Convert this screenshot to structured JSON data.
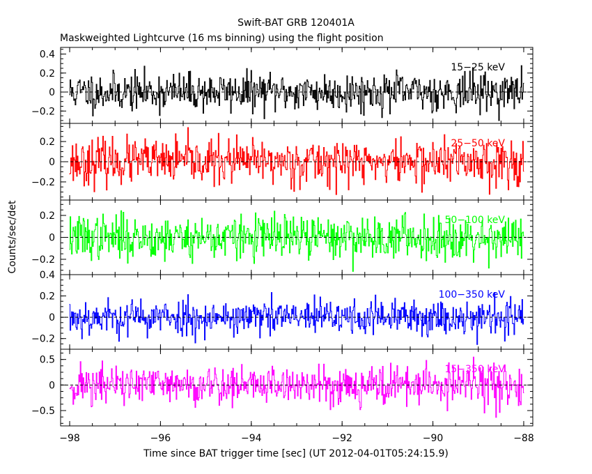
{
  "chart_data": {
    "type": "line",
    "title": "Swift-BAT GRB 120401A",
    "subtitle": "Maskweighted Lightcurve (16 ms binning) using the flight position",
    "xlabel": "Time since BAT trigger time [sec] (UT 2012-04-01T05:24:15.9)",
    "ylabel": "Counts/sec/det",
    "xlim": [
      -98.2,
      -87.8
    ],
    "x_ticks": [
      -98,
      -96,
      -94,
      -92,
      -90,
      -88
    ],
    "bin_seconds": 0.016,
    "panels": [
      {
        "name": "15-25 keV",
        "label": "15−25 keV",
        "color": "#000000",
        "ylim": [
          -0.33,
          0.47
        ],
        "y_ticks": [
          -0.2,
          0,
          0.2,
          0.4
        ],
        "y_tick_labels": [
          "−0.2",
          "0",
          "0.2",
          "0.4"
        ],
        "noise_sigma": 0.1,
        "seed": 11
      },
      {
        "name": "25-50 keV",
        "label": "25−50 keV",
        "color": "#ff0000",
        "ylim": [
          -0.38,
          0.38
        ],
        "y_ticks": [
          -0.2,
          0,
          0.2
        ],
        "y_tick_labels": [
          "−0.2",
          "0",
          "0.2"
        ],
        "noise_sigma": 0.11,
        "seed": 23
      },
      {
        "name": "50-100 keV",
        "label": "50−100 keV",
        "color": "#00ff00",
        "ylim": [
          -0.34,
          0.34
        ],
        "y_ticks": [
          -0.2,
          0,
          0.2
        ],
        "y_tick_labels": [
          "−0.2",
          "0",
          "0.2"
        ],
        "noise_sigma": 0.1,
        "seed": 37
      },
      {
        "name": "100-350 keV",
        "label": "100−350 keV",
        "color": "#0000ff",
        "ylim": [
          -0.3,
          0.4
        ],
        "y_ticks": [
          -0.2,
          0,
          0.2,
          0.4
        ],
        "y_tick_labels": [
          "−0.2",
          "0",
          "0.2",
          "0.4"
        ],
        "noise_sigma": 0.085,
        "seed": 53
      },
      {
        "name": "15-350 keV",
        "label": "15−350 keV",
        "color": "#ff00ff",
        "ylim": [
          -0.8,
          0.7
        ],
        "y_ticks": [
          -0.5,
          0,
          0.5
        ],
        "y_tick_labels": [
          "−0.5",
          "0",
          "0.5"
        ],
        "noise_sigma": 0.2,
        "seed": 71
      }
    ],
    "x_tick_labels": [
      "−98",
      "−96",
      "−94",
      "−92",
      "−90",
      "−88"
    ]
  }
}
